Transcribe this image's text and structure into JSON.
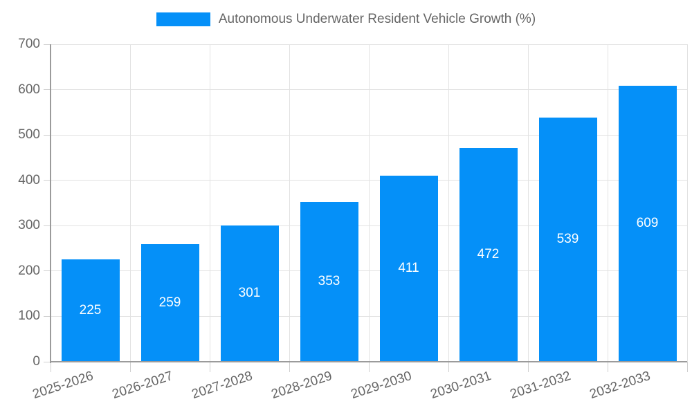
{
  "legend": {
    "label": "Autonomous Underwater Resident Vehicle Growth (%)"
  },
  "colors": {
    "bar": "#0590f8",
    "text": "#666666",
    "grid": "#e2e2e2",
    "tick": "#cfcfcf",
    "axis": "#9b9b9b",
    "value_label": "#ffffff",
    "background": "#ffffff"
  },
  "chart_data": {
    "type": "bar",
    "title": "Autonomous Underwater Resident Vehicle Growth (%)",
    "categories": [
      "2025-2026",
      "2026-2027",
      "2027-2028",
      "2028-2029",
      "2029-2030",
      "2030-2031",
      "2031-2032",
      "2032-2033"
    ],
    "values": [
      225,
      259,
      301,
      353,
      411,
      472,
      539,
      609
    ],
    "xlabel": "",
    "ylabel": "",
    "ylim": [
      0,
      700
    ],
    "y_ticks": [
      0,
      100,
      200,
      300,
      400,
      500,
      600,
      700
    ],
    "grid": true,
    "legend_position": "top",
    "value_label_position": "inside-center",
    "x_label_rotation_deg": -18
  }
}
